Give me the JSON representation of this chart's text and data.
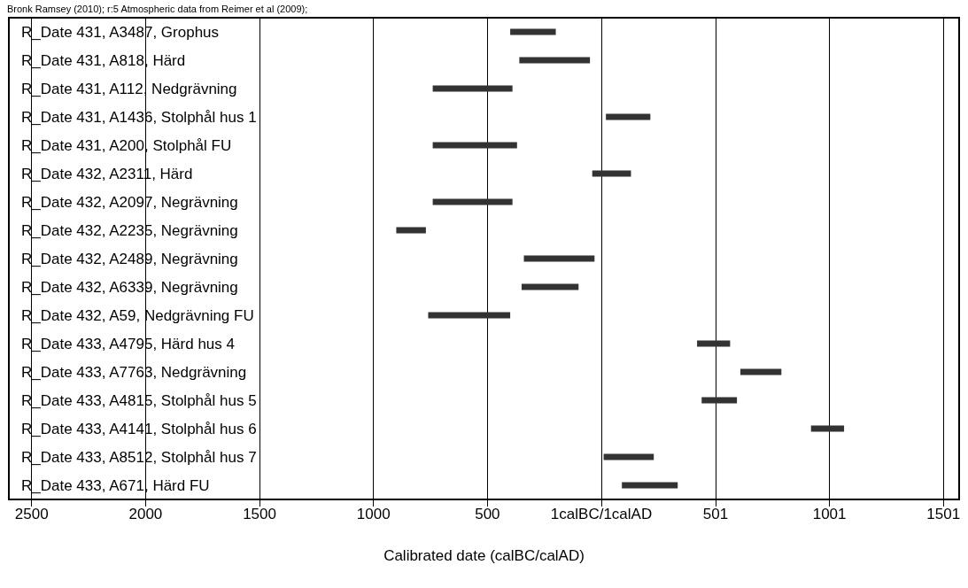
{
  "chart_data": {
    "type": "bar",
    "orientation": "horizontal",
    "annotations": [
      "Bronk Ramsey (2010); r:5 Atmospheric data from Reimer et al (2009);"
    ],
    "xlabel": "Calibrated date (calBC/calAD)",
    "categories": [
      "R_Date 431, A3487, Grophus",
      "R_Date 431, A818, Härd",
      "R_Date 431, A112, Nedgrävning",
      "R_Date 431, A1436, Stolphål hus 1",
      "R_Date 431, A200, Stolphål FU",
      "R_Date 432, A2311, Härd",
      "R_Date 432, A2097, Negrävning",
      "R_Date 432, A2235, Negrävning",
      "R_Date 432, A2489, Negrävning",
      "R_Date 432, A6339, Negrävning",
      "R_Date 432, A59, Nedgrävning FU",
      "R_Date 433, A4795, Härd hus 4",
      "R_Date 433, A7763, Nedgrävning",
      "R_Date 433, A4815, Stolphål hus 5",
      "R_Date 433, A4141, Stolphål hus 6",
      "R_Date 433, A8512, Stolphål hus 7",
      "R_Date 433, A671, Härd FU"
    ],
    "base": [
      -400,
      -360,
      -740,
      20,
      -740,
      -40,
      -740,
      -900,
      -340,
      -350,
      -760,
      420,
      610,
      440,
      920,
      10,
      90
    ],
    "values": [
      200,
      310,
      350,
      195,
      370,
      170,
      350,
      130,
      310,
      250,
      360,
      145,
      180,
      155,
      145,
      220,
      245
    ],
    "color": "#333333",
    "xlim": [
      -2600,
      1570
    ],
    "xticks": [
      {
        "value": -2500,
        "label": "2500"
      },
      {
        "value": -2000,
        "label": "2000"
      },
      {
        "value": -1500,
        "label": "1500"
      },
      {
        "value": -1000,
        "label": "1000"
      },
      {
        "value": -500,
        "label": "500"
      },
      {
        "value": 0,
        "label": "1calBC/1calAD"
      },
      {
        "value": 501,
        "label": "501"
      },
      {
        "value": 1001,
        "label": "1001"
      },
      {
        "value": 1501,
        "label": "1501"
      }
    ],
    "grid": "x"
  }
}
